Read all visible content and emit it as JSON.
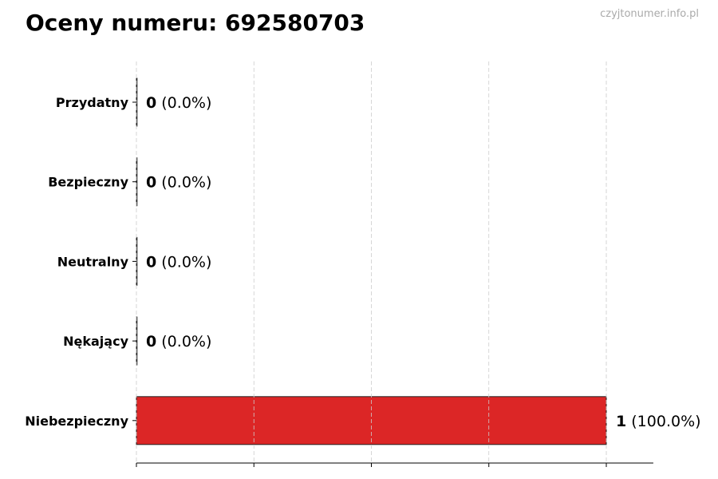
{
  "chart_data": {
    "type": "bar",
    "orientation": "horizontal",
    "title": "Oceny numeru: 692580703",
    "watermark": "czyjtonumer.info.pl",
    "categories": [
      "Przydatny",
      "Bezpieczny",
      "Neutralny",
      "Nękający",
      "Niebezpieczny"
    ],
    "values": [
      0,
      0,
      0,
      0,
      1
    ],
    "percent_labels": [
      "(0.0%)",
      "(0.0%)",
      "(0.0%)",
      "(0.0%)",
      "(100.0%)"
    ],
    "colors": [
      "#22a34a",
      "#2563eb",
      "#9ca3af",
      "#f59e0b",
      "#dc2626"
    ],
    "xlim": [
      0,
      1.1
    ],
    "xticks": [
      0,
      0.25,
      0.5,
      0.75,
      1.0
    ],
    "xtick_labels_shown": false,
    "grid": "vertical dashed",
    "xlabel": "",
    "ylabel": ""
  }
}
